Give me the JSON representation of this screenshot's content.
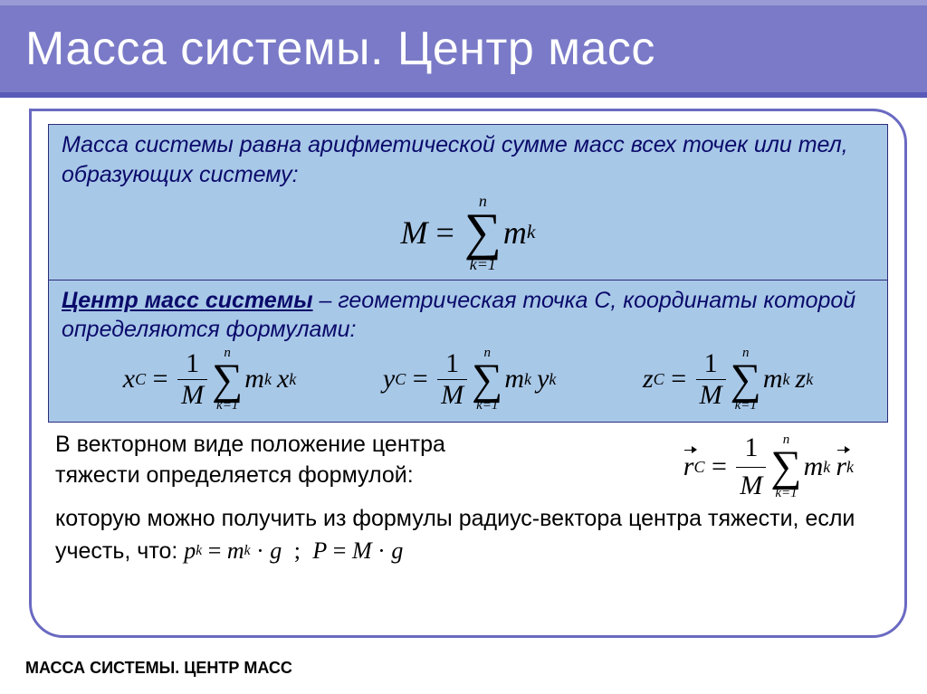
{
  "colors": {
    "header_bg": "#7a7ac8",
    "stripe_top": "#9a9ad6",
    "stripe_bot": "#5a5ab8",
    "panel_border": "#6a6ac2",
    "box_bg": "#a8c8e8",
    "def_text": "#0a0a6a"
  },
  "title": "Масса системы. Центр масс",
  "box1": {
    "text": "Масса системы равна арифметической сумме масс всех точек или тел, образующих систему:"
  },
  "box2": {
    "term": "Центр масс системы",
    "rest": " – геометрическая точка C, координаты которой определяются формулами:"
  },
  "body": {
    "line1a": "В векторном виде положение центра",
    "line1b": "тяжести определяется формулой:",
    "line2": "которую можно получить из формулы радиус-вектора центра тяжести, если учесть, что: "
  },
  "formulas": {
    "mass_lhs": "M",
    "sum_upper": "n",
    "sum_lower": "k=1",
    "mk": "m",
    "xc": "x",
    "yc": "y",
    "zc": "z",
    "rc": "r",
    "sub_c": "C",
    "sub_k": "k",
    "one": "1",
    "pk": "p",
    "g": "g",
    "P": "P",
    "dot": "·",
    "semi": ";",
    "eq": "="
  },
  "footer": "МАССА СИСТЕМЫ. ЦЕНТР МАСС"
}
